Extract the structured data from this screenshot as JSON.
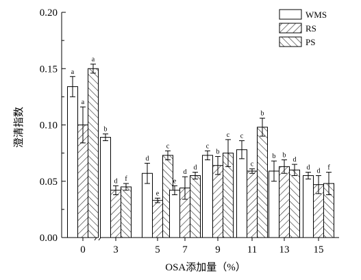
{
  "chart_data": {
    "type": "bar",
    "xlabel": "OSA添加量（%）",
    "ylabel": "澄清指数",
    "ylim": [
      0,
      0.2
    ],
    "yticks": [
      "0.00",
      "0.05",
      "0.10",
      "0.15",
      "0.20"
    ],
    "categories": [
      "0",
      "3",
      "5",
      "7",
      "9",
      "11",
      "13",
      "15"
    ],
    "axis_break": "between 0 and 3",
    "legend_position": "top-right",
    "series": [
      {
        "name": "WMS",
        "pattern": "none",
        "values": [
          0.134,
          0.089,
          0.057,
          0.042,
          0.073,
          0.078,
          0.059,
          0.055
        ],
        "errors": [
          0.009,
          0.003,
          0.009,
          0.004,
          0.004,
          0.008,
          0.009,
          0.003
        ],
        "letters": [
          "a",
          "b",
          "d",
          "e",
          "c",
          "c",
          "b",
          "d"
        ]
      },
      {
        "name": "RS",
        "pattern": "forward-hatch",
        "values": [
          0.1,
          0.042,
          0.033,
          0.044,
          0.064,
          0.059,
          0.063,
          0.047
        ],
        "errors": [
          0.016,
          0.004,
          0.002,
          0.01,
          0.008,
          0.002,
          0.006,
          0.008
        ],
        "letters": [
          "a",
          "d",
          "e",
          "d",
          "b",
          "c",
          "b",
          "d"
        ]
      },
      {
        "name": "PS",
        "pattern": "back-hatch",
        "values": [
          0.15,
          0.045,
          0.073,
          0.055,
          0.075,
          0.098,
          0.06,
          0.048
        ],
        "errors": [
          0.004,
          0.003,
          0.004,
          0.003,
          0.012,
          0.008,
          0.005,
          0.01
        ],
        "letters": [
          "a",
          "f",
          "c",
          "d",
          "c",
          "b",
          "d",
          "f"
        ]
      }
    ]
  }
}
